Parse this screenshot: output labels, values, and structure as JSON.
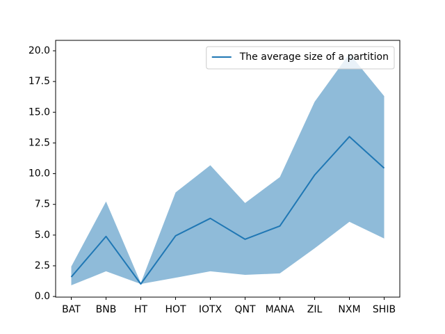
{
  "chart_data": {
    "type": "line",
    "categories": [
      "BAT",
      "BNB",
      "HT",
      "HOT",
      "IOTX",
      "QNT",
      "MANA",
      "ZIL",
      "NXM",
      "SHIB"
    ],
    "series": [
      {
        "name": "The average size of a partition",
        "color": "#1f77b4",
        "values": [
          1.59,
          4.89,
          1.02,
          4.94,
          6.36,
          4.66,
          5.74,
          9.89,
          13.01,
          10.45
        ]
      }
    ],
    "band": {
      "color": "#1f77b4",
      "opacity": 0.5,
      "upper": [
        2.44,
        7.73,
        1.1,
        8.47,
        10.68,
        7.61,
        9.72,
        15.85,
        19.77,
        16.31
      ],
      "lower": [
        0.91,
        2.05,
        1.02,
        1.53,
        2.05,
        1.76,
        1.88,
        3.92,
        6.08,
        4.72
      ]
    },
    "ylim": [
      -0.05,
      20.85
    ],
    "yticks": [
      {
        "value": 0,
        "label": "0.0"
      },
      2.5,
      {
        "value": 5,
        "label": "5.0"
      },
      7.5,
      {
        "value": 10,
        "label": "10.0"
      },
      12.5,
      {
        "value": 15,
        "label": "15.0"
      },
      17.5,
      {
        "value": 20,
        "label": "20.0"
      }
    ],
    "grid": false,
    "legend": "upper right"
  }
}
